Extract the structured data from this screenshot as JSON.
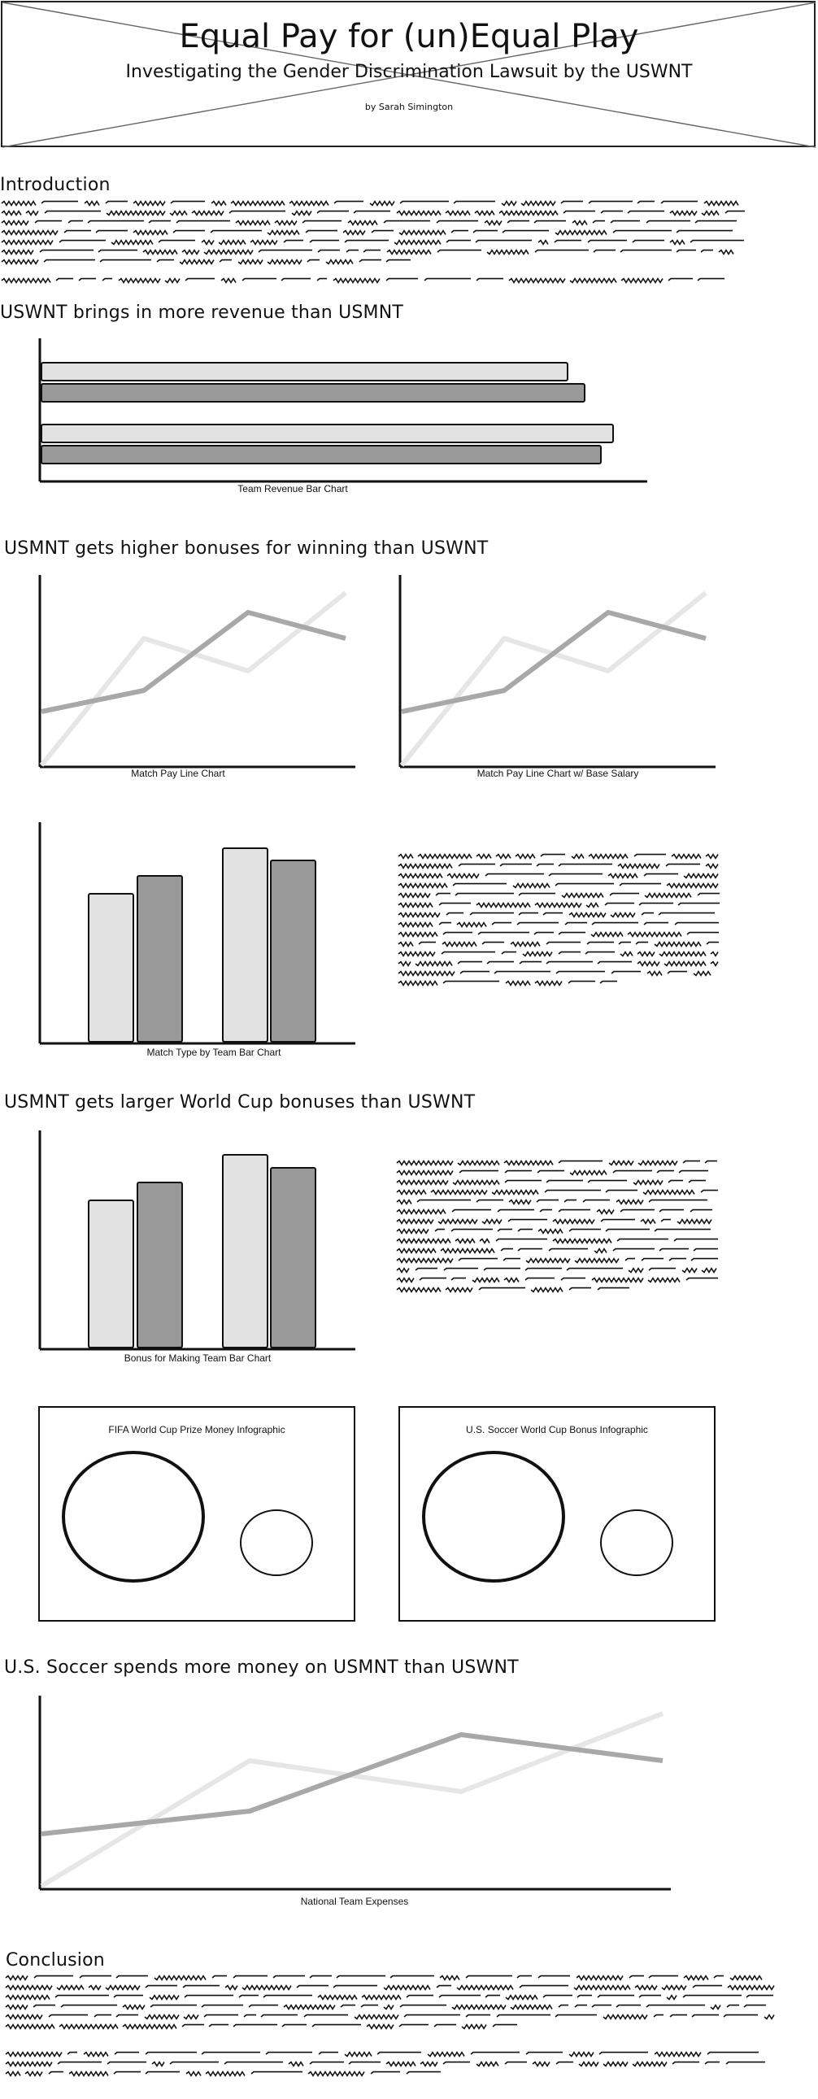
{
  "header": {
    "title": "Equal Pay for (un)Equal Play",
    "subtitle": "Investigating the Gender Discrimination Lawsuit by the USWNT",
    "byline": "by Sarah Simington"
  },
  "sections": {
    "intro": "Introduction",
    "revenue": "USWNT brings in more revenue than USMNT",
    "bonuses": "USMNT gets higher bonuses for winning than USWNT",
    "worldcup": "USMNT gets larger World Cup bonuses than USWNT",
    "spending": "U.S. Soccer spends more money on USMNT than USWNT",
    "conclusion": "Conclusion"
  },
  "captions": {
    "revenue_chart": "Team Revenue Bar Chart",
    "match_pay": "Match Pay Line Chart",
    "match_pay_base": "Match Pay Line Chart w/ Base Salary",
    "match_type": "Match Type by Team Bar Chart",
    "bonus_team": "Bonus for Making Team Bar Chart",
    "fifa_info": "FIFA World Cup Prize Money Infographic",
    "ussoccer_info": "U.S. Soccer World Cup Bonus Infographic",
    "expenses": "National Team Expenses"
  },
  "colors": {
    "light": "#e2e2e2",
    "dark": "#999999",
    "line_light": "#e6e6e6",
    "line_dark": "#a8a8a8",
    "ink": "#111111"
  }
}
